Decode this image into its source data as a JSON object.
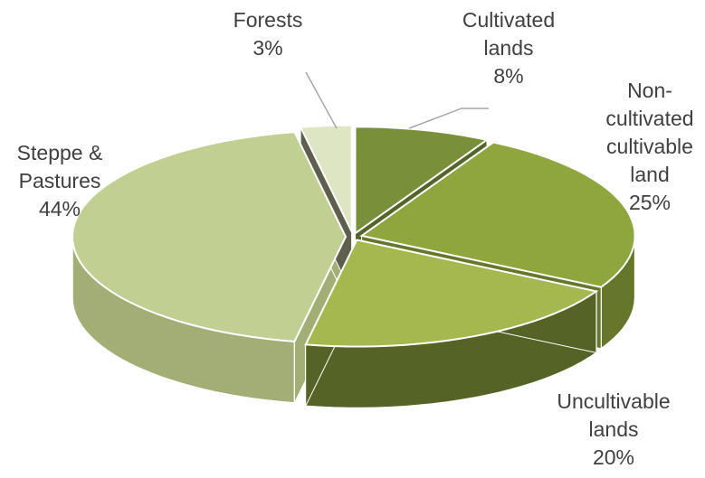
{
  "chart_data": {
    "type": "pie",
    "style": "3d-exploded",
    "title": "",
    "slices": [
      {
        "label": "Cultivated lands",
        "label_lines": [
          "Cultivated",
          "lands"
        ],
        "percent_label": "8%",
        "value": 8,
        "colors": {
          "top": "#7a8f3a",
          "side": "#55652a"
        }
      },
      {
        "label": "Non-cultivated cultivable land",
        "label_lines": [
          "Non-",
          "cultivated",
          "cultivable",
          "land"
        ],
        "percent_label": "25%",
        "value": 25,
        "colors": {
          "top": "#8fa63e",
          "side": "#66772b"
        }
      },
      {
        "label": "Uncultivable lands",
        "label_lines": [
          "Uncultivable",
          "lands"
        ],
        "percent_label": "20%",
        "value": 20,
        "colors": {
          "top": "#a4b84f",
          "side": "#556326"
        }
      },
      {
        "label": "Steppe & Pastures",
        "label_lines": [
          "Steppe &",
          "Pastures"
        ],
        "percent_label": "44%",
        "value": 44,
        "colors": {
          "top": "#c1cf92",
          "side": "#a2ae76"
        }
      },
      {
        "label": "Forests",
        "label_lines": [
          "Forests"
        ],
        "percent_label": "3%",
        "value": 3,
        "colors": {
          "top": "#dde5c2",
          "side": "#5f5f4f"
        }
      }
    ],
    "legend": "none"
  }
}
